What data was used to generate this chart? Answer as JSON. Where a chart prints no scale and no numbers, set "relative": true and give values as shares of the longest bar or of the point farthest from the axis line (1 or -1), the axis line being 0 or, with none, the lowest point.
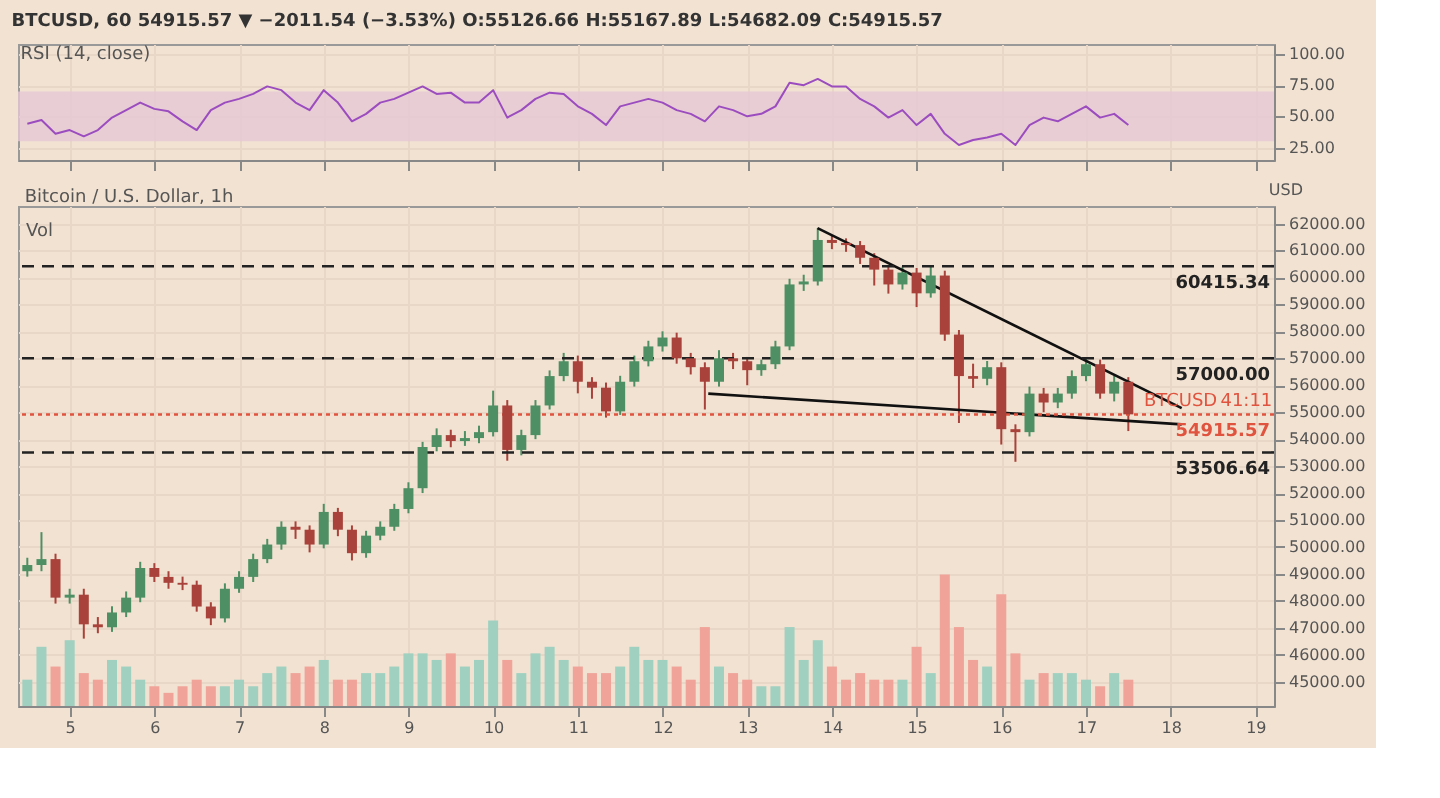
{
  "chart_data": [
    {
      "type": "line",
      "title": "RSI (14, close)",
      "annotations": [
        "BTCUSD, 60  54915.57 ▼ −2011.54 (−3.53%)  O:55126.66 H:55167.89 L:54682.09 C:54915.57"
      ],
      "x": [
        4.5,
        4.667,
        4.833,
        5,
        5.167,
        5.333,
        5.5,
        5.667,
        5.833,
        6,
        6.167,
        6.333,
        6.5,
        6.667,
        6.833,
        7,
        7.167,
        7.333,
        7.5,
        7.667,
        7.833,
        8,
        8.167,
        8.333,
        8.5,
        8.667,
        8.833,
        9,
        9.167,
        9.333,
        9.5,
        9.667,
        9.833,
        10,
        10.167,
        10.333,
        10.5,
        10.667,
        10.833,
        11,
        11.167,
        11.333,
        11.5,
        11.667,
        11.833,
        12,
        12.167,
        12.333,
        12.5,
        12.667,
        12.833,
        13,
        13.167,
        13.333,
        13.5,
        13.667,
        13.833,
        14,
        14.167,
        14.333,
        14.5,
        14.667,
        14.833,
        15,
        15.167,
        15.333,
        15.5,
        15.667,
        15.833,
        16,
        16.167,
        16.333,
        16.5,
        16.667,
        16.833,
        17,
        17.167,
        17.333,
        17.5
      ],
      "series": [
        {
          "color": "#9b4dbf",
          "values": [
            44,
            47,
            36,
            39,
            34,
            39,
            49,
            55,
            61,
            56,
            54,
            46,
            39,
            55,
            61,
            64,
            68,
            74,
            71,
            61,
            55,
            71,
            61,
            46,
            52,
            61,
            64,
            69,
            74,
            68,
            69,
            61,
            61,
            71,
            49,
            55,
            64,
            69,
            68,
            58,
            52,
            43,
            58,
            61,
            64,
            61,
            55,
            52,
            46,
            58,
            55,
            50,
            52,
            58,
            77,
            75,
            80,
            74,
            74,
            64,
            58,
            49,
            55,
            43,
            52,
            36,
            27,
            31,
            33,
            36,
            27,
            43,
            49,
            46,
            52,
            58,
            49,
            52,
            43
          ]
        }
      ],
      "bands": [
        {
          "axis": "y",
          "from": 30,
          "to": 70,
          "color": "#e6c8d6"
        }
      ],
      "xlim": [
        4.39,
        19.22
      ],
      "xticks": [
        5,
        6,
        7,
        8,
        9,
        10,
        11,
        12,
        13,
        14,
        15,
        16,
        17,
        18,
        19
      ],
      "ylim": [
        15,
        108
      ],
      "yticks": [
        {
          "value": 25,
          "label": "25.00"
        },
        {
          "value": 50,
          "label": "50.00"
        },
        {
          "value": 75,
          "label": "75.00"
        },
        {
          "value": 100,
          "label": "100.00"
        }
      ],
      "tick_labels": "y",
      "grid": true
    },
    {
      "type": "candlestick",
      "title": "Bitcoin / U.S. Dollar, 1h",
      "ylabel": "USD",
      "x": [
        4.5,
        4.667,
        4.833,
        5,
        5.167,
        5.333,
        5.5,
        5.667,
        5.833,
        6,
        6.167,
        6.333,
        6.5,
        6.667,
        6.833,
        7,
        7.167,
        7.333,
        7.5,
        7.667,
        7.833,
        8,
        8.167,
        8.333,
        8.5,
        8.667,
        8.833,
        9,
        9.167,
        9.333,
        9.5,
        9.667,
        9.833,
        10,
        10.167,
        10.333,
        10.5,
        10.667,
        10.833,
        11,
        11.167,
        11.333,
        11.5,
        11.667,
        11.833,
        12,
        12.167,
        12.333,
        12.5,
        12.667,
        12.833,
        13,
        13.167,
        13.333,
        13.5,
        13.667,
        13.833,
        14,
        14.167,
        14.333,
        14.5,
        14.667,
        14.833,
        15,
        15.167,
        15.333,
        15.5,
        15.667,
        15.833,
        16,
        16.167,
        16.333,
        16.5,
        16.667,
        16.833,
        17,
        17.167,
        17.333,
        17.5
      ],
      "ohlc": [
        [
          49100,
          49600,
          48900,
          49330
        ],
        [
          49330,
          50550,
          49100,
          49550
        ],
        [
          49550,
          49750,
          47900,
          48120
        ],
        [
          48120,
          48450,
          47900,
          48230
        ],
        [
          48230,
          48450,
          46600,
          47130
        ],
        [
          47130,
          47400,
          46800,
          47020
        ],
        [
          47020,
          47800,
          46850,
          47570
        ],
        [
          47570,
          48350,
          47400,
          48120
        ],
        [
          48120,
          49450,
          47950,
          49220
        ],
        [
          49220,
          49400,
          48700,
          48890
        ],
        [
          48890,
          49100,
          48450,
          48670
        ],
        [
          48670,
          48900,
          48400,
          48600
        ],
        [
          48600,
          48750,
          47600,
          47790
        ],
        [
          47790,
          47950,
          47100,
          47350
        ],
        [
          47350,
          48650,
          47200,
          48450
        ],
        [
          48450,
          49100,
          48300,
          48890
        ],
        [
          48890,
          49750,
          48700,
          49550
        ],
        [
          49550,
          50300,
          49400,
          50090
        ],
        [
          50090,
          50950,
          49900,
          50750
        ],
        [
          50750,
          50950,
          50300,
          50640
        ],
        [
          50640,
          50800,
          49800,
          50090
        ],
        [
          50090,
          51600,
          49950,
          51300
        ],
        [
          51300,
          51450,
          50400,
          50640
        ],
        [
          50640,
          50800,
          49500,
          49770
        ],
        [
          49770,
          50600,
          49600,
          50420
        ],
        [
          50420,
          50950,
          50250,
          50750
        ],
        [
          50750,
          51600,
          50600,
          51410
        ],
        [
          51410,
          52400,
          51250,
          52180
        ],
        [
          52180,
          53900,
          52000,
          53710
        ],
        [
          53710,
          54400,
          53550,
          54150
        ],
        [
          54150,
          54350,
          53700,
          53930
        ],
        [
          53930,
          54300,
          53750,
          54040
        ],
        [
          54040,
          54500,
          53850,
          54260
        ],
        [
          54260,
          55800,
          54100,
          55250
        ],
        [
          55250,
          55450,
          53200,
          53600
        ],
        [
          53600,
          54350,
          53400,
          54150
        ],
        [
          54150,
          55450,
          54000,
          55250
        ],
        [
          55250,
          56550,
          55100,
          56340
        ],
        [
          56340,
          57200,
          56150,
          56890
        ],
        [
          56890,
          57100,
          55700,
          56130
        ],
        [
          56130,
          56300,
          55500,
          55910
        ],
        [
          55910,
          56100,
          54800,
          55030
        ],
        [
          55030,
          56350,
          54900,
          56130
        ],
        [
          56130,
          57100,
          55950,
          56890
        ],
        [
          56890,
          57650,
          56700,
          57440
        ],
        [
          57440,
          58000,
          57250,
          57770
        ],
        [
          57770,
          57950,
          56800,
          57000
        ],
        [
          57000,
          57200,
          56400,
          56670
        ],
        [
          56670,
          56850,
          55100,
          56130
        ],
        [
          56130,
          57300,
          55950,
          57000
        ],
        [
          57000,
          57200,
          56600,
          56890
        ],
        [
          56890,
          57050,
          56000,
          56560
        ],
        [
          56560,
          56950,
          56350,
          56780
        ],
        [
          56780,
          57650,
          56600,
          57440
        ],
        [
          57440,
          59950,
          57300,
          59740
        ],
        [
          59740,
          60100,
          59500,
          59850
        ],
        [
          59850,
          61830,
          59700,
          61390
        ],
        [
          61390,
          61550,
          61050,
          61280
        ],
        [
          61280,
          61450,
          60950,
          61200
        ],
        [
          61200,
          61350,
          60500,
          60730
        ],
        [
          60730,
          60900,
          59700,
          60290
        ],
        [
          60290,
          60450,
          59400,
          59740
        ],
        [
          59740,
          60400,
          59550,
          60180
        ],
        [
          60180,
          60350,
          58900,
          59410
        ],
        [
          59410,
          60450,
          59250,
          60070
        ],
        [
          60070,
          60250,
          57650,
          57880
        ],
        [
          57880,
          58050,
          54600,
          56340
        ],
        [
          56340,
          56800,
          55900,
          56240
        ],
        [
          56240,
          56900,
          56000,
          56670
        ],
        [
          56670,
          56850,
          53800,
          54370
        ],
        [
          54370,
          54550,
          53160,
          54260
        ],
        [
          54260,
          55950,
          54100,
          55690
        ],
        [
          55690,
          55900,
          55000,
          55360
        ],
        [
          55360,
          55900,
          55150,
          55690
        ],
        [
          55690,
          56550,
          55500,
          56340
        ],
        [
          56340,
          57000,
          56150,
          56780
        ],
        [
          56780,
          56950,
          55500,
          55690
        ],
        [
          55690,
          56350,
          55400,
          56130
        ],
        [
          56130,
          56300,
          54300,
          54920
        ]
      ],
      "colors": [
        "#4e8f63",
        "#4e8f63",
        "#a8423a",
        "#4e8f63",
        "#a8423a",
        "#a8423a",
        "#4e8f63",
        "#4e8f63",
        "#4e8f63",
        "#a8423a",
        "#a8423a",
        "#a8423a",
        "#a8423a",
        "#a8423a",
        "#4e8f63",
        "#4e8f63",
        "#4e8f63",
        "#4e8f63",
        "#4e8f63",
        "#a8423a",
        "#a8423a",
        "#4e8f63",
        "#a8423a",
        "#a8423a",
        "#4e8f63",
        "#4e8f63",
        "#4e8f63",
        "#4e8f63",
        "#4e8f63",
        "#4e8f63",
        "#a8423a",
        "#4e8f63",
        "#4e8f63",
        "#4e8f63",
        "#a8423a",
        "#4e8f63",
        "#4e8f63",
        "#4e8f63",
        "#4e8f63",
        "#a8423a",
        "#a8423a",
        "#a8423a",
        "#4e8f63",
        "#4e8f63",
        "#4e8f63",
        "#4e8f63",
        "#a8423a",
        "#a8423a",
        "#a8423a",
        "#4e8f63",
        "#a8423a",
        "#a8423a",
        "#4e8f63",
        "#4e8f63",
        "#4e8f63",
        "#4e8f63",
        "#4e8f63",
        "#a8423a",
        "#a8423a",
        "#a8423a",
        "#a8423a",
        "#a8423a",
        "#4e8f63",
        "#a8423a",
        "#4e8f63",
        "#a8423a",
        "#a8423a",
        "#a8423a",
        "#4e8f63",
        "#a8423a",
        "#a8423a",
        "#4e8f63",
        "#a8423a",
        "#4e8f63",
        "#4e8f63",
        "#4e8f63",
        "#a8423a",
        "#4e8f63",
        "#a8423a"
      ],
      "series": [
        {
          "type": "line",
          "color": "#111111",
          "x": [
            13.83,
            18.13
          ],
          "values": [
            61830,
            55150
          ]
        },
        {
          "type": "line",
          "color": "#111111",
          "x": [
            12.54,
            18.13
          ],
          "values": [
            55690,
            54550
          ]
        }
      ],
      "ref_lines": [
        {
          "axis": "y",
          "value": 60415.34,
          "label": "60415.34",
          "color": "#222222",
          "line_style": "dashed"
        },
        {
          "axis": "y",
          "value": 57000,
          "label": "57000.00",
          "color": "#222222",
          "line_style": "dashed"
        },
        {
          "axis": "y",
          "value": 53506.64,
          "label": "53506.64",
          "color": "#222222",
          "line_style": "dashed"
        },
        {
          "axis": "y",
          "value": 54915.57,
          "label": "54915.57",
          "color": "#e0533f",
          "line_style": "dotted"
        }
      ],
      "annotations": [
        {
          "text": "BTCUSD",
          "x": 18.55,
          "y": 54915.57
        },
        {
          "text": "41:11",
          "x": 19.2,
          "y": 54915.57
        }
      ],
      "xlim": [
        4.39,
        19.22
      ],
      "xticks": [
        5,
        6,
        7,
        8,
        9,
        10,
        11,
        12,
        13,
        14,
        15,
        16,
        17,
        18,
        19
      ],
      "ylim": [
        44100,
        62650
      ],
      "yticks": [
        {
          "value": 45000,
          "label": "45000.00"
        },
        {
          "value": 46000,
          "label": "46000.00"
        },
        {
          "value": 47000,
          "label": "47000.00"
        },
        {
          "value": 48000,
          "label": "48000.00"
        },
        {
          "value": 49000,
          "label": "49000.00"
        },
        {
          "value": 50000,
          "label": "50000.00"
        },
        {
          "value": 51000,
          "label": "51000.00"
        },
        {
          "value": 52000,
          "label": "52000.00"
        },
        {
          "value": 53000,
          "label": "53000.00"
        },
        {
          "value": 54000,
          "label": "54000.00"
        },
        {
          "value": 55000,
          "label": "55000.00"
        },
        {
          "value": 56000,
          "label": "56000.00"
        },
        {
          "value": 57000,
          "label": "57000.00"
        },
        {
          "value": 58000,
          "label": "58000.00"
        },
        {
          "value": 59000,
          "label": "59000.00"
        },
        {
          "value": 60000,
          "label": "60000.00"
        },
        {
          "value": 61000,
          "label": "61000.00"
        },
        {
          "value": 62000,
          "label": "62000.00"
        }
      ],
      "grid": true
    },
    {
      "type": "bar",
      "title": "Vol",
      "relative": true,
      "xlim": [
        4.39,
        19.22
      ],
      "x": [
        4.5,
        4.667,
        4.833,
        5,
        5.167,
        5.333,
        5.5,
        5.667,
        5.833,
        6,
        6.167,
        6.333,
        6.5,
        6.667,
        6.833,
        7,
        7.167,
        7.333,
        7.5,
        7.667,
        7.833,
        8,
        8.167,
        8.333,
        8.5,
        8.667,
        8.833,
        9,
        9.167,
        9.333,
        9.5,
        9.667,
        9.833,
        10,
        10.167,
        10.333,
        10.5,
        10.667,
        10.833,
        11,
        11.167,
        11.333,
        11.5,
        11.667,
        11.833,
        12,
        12.167,
        12.333,
        12.5,
        12.667,
        12.833,
        13,
        13.167,
        13.333,
        13.5,
        13.667,
        13.833,
        14,
        14.167,
        14.333,
        14.5,
        14.667,
        14.833,
        15,
        15.167,
        15.333,
        15.5,
        15.667,
        15.833,
        16,
        16.167,
        16.333,
        16.5,
        16.667,
        16.833,
        17,
        17.167,
        17.333,
        17.5
      ],
      "values": [
        0.2,
        0.45,
        0.3,
        0.5,
        0.25,
        0.2,
        0.35,
        0.3,
        0.2,
        0.15,
        0.1,
        0.15,
        0.2,
        0.15,
        0.15,
        0.2,
        0.15,
        0.25,
        0.3,
        0.25,
        0.3,
        0.35,
        0.2,
        0.2,
        0.25,
        0.25,
        0.3,
        0.4,
        0.4,
        0.35,
        0.4,
        0.3,
        0.35,
        0.65,
        0.35,
        0.25,
        0.4,
        0.45,
        0.35,
        0.3,
        0.25,
        0.25,
        0.3,
        0.45,
        0.35,
        0.35,
        0.3,
        0.2,
        0.6,
        0.3,
        0.25,
        0.2,
        0.15,
        0.15,
        0.6,
        0.35,
        0.5,
        0.3,
        0.2,
        0.25,
        0.2,
        0.2,
        0.2,
        0.45,
        0.25,
        1.0,
        0.6,
        0.35,
        0.3,
        0.85,
        0.4,
        0.2,
        0.25,
        0.25,
        0.25,
        0.2,
        0.15,
        0.25,
        0.2
      ],
      "colors": [
        "#9fd0c0",
        "#9fd0c0",
        "#f0a399",
        "#9fd0c0",
        "#f0a399",
        "#f0a399",
        "#9fd0c0",
        "#9fd0c0",
        "#9fd0c0",
        "#f0a399",
        "#f0a399",
        "#f0a399",
        "#f0a399",
        "#f0a399",
        "#9fd0c0",
        "#9fd0c0",
        "#9fd0c0",
        "#9fd0c0",
        "#9fd0c0",
        "#f0a399",
        "#f0a399",
        "#9fd0c0",
        "#f0a399",
        "#f0a399",
        "#9fd0c0",
        "#9fd0c0",
        "#9fd0c0",
        "#9fd0c0",
        "#9fd0c0",
        "#9fd0c0",
        "#f0a399",
        "#9fd0c0",
        "#9fd0c0",
        "#9fd0c0",
        "#f0a399",
        "#9fd0c0",
        "#9fd0c0",
        "#9fd0c0",
        "#9fd0c0",
        "#f0a399",
        "#f0a399",
        "#f0a399",
        "#9fd0c0",
        "#9fd0c0",
        "#9fd0c0",
        "#9fd0c0",
        "#f0a399",
        "#f0a399",
        "#f0a399",
        "#9fd0c0",
        "#f0a399",
        "#f0a399",
        "#9fd0c0",
        "#9fd0c0",
        "#9fd0c0",
        "#9fd0c0",
        "#9fd0c0",
        "#f0a399",
        "#f0a399",
        "#f0a399",
        "#f0a399",
        "#f0a399",
        "#9fd0c0",
        "#f0a399",
        "#9fd0c0",
        "#f0a399",
        "#f0a399",
        "#f0a399",
        "#9fd0c0",
        "#f0a399",
        "#f0a399",
        "#9fd0c0",
        "#f0a399",
        "#9fd0c0",
        "#9fd0c0",
        "#9fd0c0",
        "#f0a399",
        "#9fd0c0",
        "#f0a399"
      ]
    }
  ]
}
